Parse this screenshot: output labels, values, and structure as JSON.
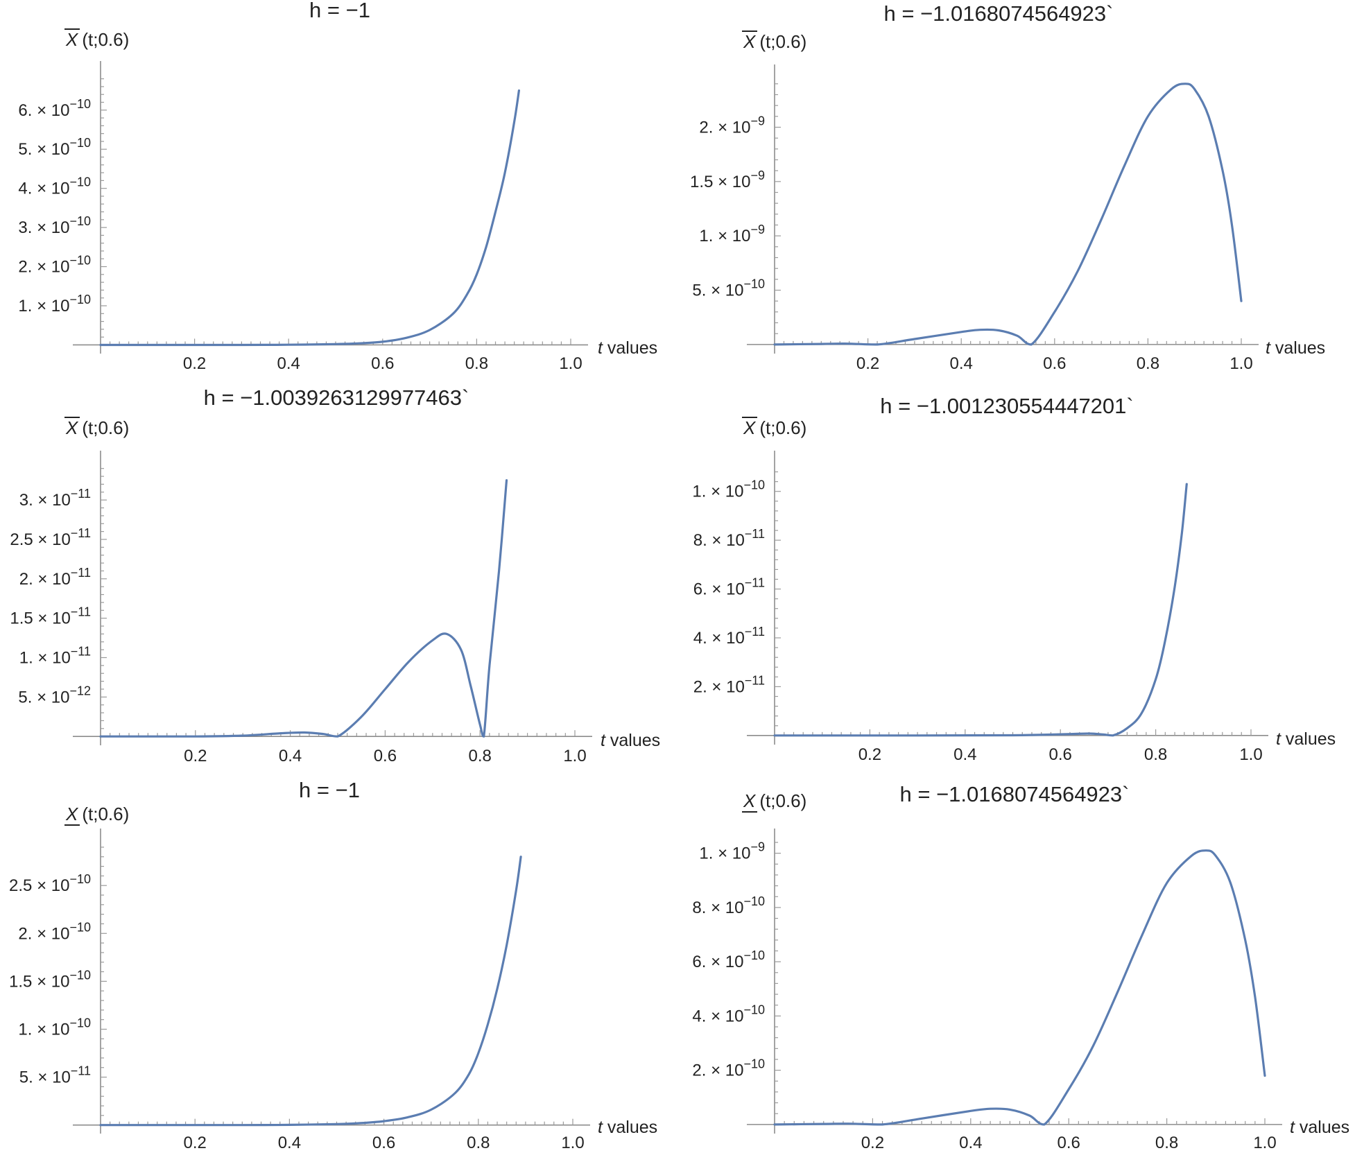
{
  "figure": {
    "curve_color": "#5b7db1",
    "axis_color": "#8c8c8c",
    "background": "#ffffff"
  },
  "chart_data": [
    {
      "type": "line",
      "title": "h = −1",
      "ylabel": "X",
      "ylabel_bar": "over",
      "ylabel_suffix": "(t;0.6)",
      "xlabel_italic": "t",
      "xlabel_rest": " values",
      "xlim": [
        0,
        1.0
      ],
      "ylim": [
        -4.5e-12,
        6.9e-10
      ],
      "xticks": [
        0.2,
        0.4,
        0.6,
        0.8,
        1.0
      ],
      "xtick_labels": [
        "0.2",
        "0.4",
        "0.6",
        "0.8",
        "1.0"
      ],
      "yticks": [
        {
          "value": 1e-10,
          "mantissa": "1.",
          "exponent": "−10"
        },
        {
          "value": 2e-10,
          "mantissa": "2.",
          "exponent": "−10"
        },
        {
          "value": 3e-10,
          "mantissa": "3.",
          "exponent": "−10"
        },
        {
          "value": 4e-10,
          "mantissa": "4.",
          "exponent": "−10"
        },
        {
          "value": 5e-10,
          "mantissa": "5.",
          "exponent": "−10"
        },
        {
          "value": 6e-10,
          "mantissa": "6.",
          "exponent": "−10"
        }
      ],
      "x": [
        0.0,
        0.3,
        0.4,
        0.5,
        0.55,
        0.6,
        0.65,
        0.7,
        0.75,
        0.78,
        0.8,
        0.82,
        0.84,
        0.86,
        0.88,
        0.89
      ],
      "y": [
        0,
        0,
        5e-13,
        2e-12,
        4e-12,
        8e-12,
        1.8e-11,
        3.8e-11,
        8e-11,
        1.3e-10,
        1.8e-10,
        2.5e-10,
        3.4e-10,
        4.4e-10,
        5.7e-10,
        6.5e-10
      ]
    },
    {
      "type": "line",
      "title": "h = −1.0168074564923`",
      "ylabel": "X",
      "ylabel_bar": "over",
      "ylabel_suffix": "(t;0.6)",
      "xlabel_italic": "t",
      "xlabel_rest": " values",
      "xlim": [
        0,
        1.0
      ],
      "ylim": [
        -2e-11,
        2.45e-09
      ],
      "xticks": [
        0.2,
        0.4,
        0.6,
        0.8,
        1.0
      ],
      "xtick_labels": [
        "0.2",
        "0.4",
        "0.6",
        "0.8",
        "1.0"
      ],
      "yticks": [
        {
          "value": 5e-10,
          "mantissa": "5.",
          "exponent": "−10"
        },
        {
          "value": 1e-09,
          "mantissa": "1.",
          "exponent": "−9"
        },
        {
          "value": 1.5e-09,
          "mantissa": "1.5",
          "exponent": "−9"
        },
        {
          "value": 2e-09,
          "mantissa": "2.",
          "exponent": "−9"
        }
      ],
      "x": [
        0.0,
        0.1,
        0.15,
        0.22,
        0.3,
        0.4,
        0.44,
        0.48,
        0.52,
        0.55,
        0.6,
        0.65,
        0.7,
        0.75,
        0.8,
        0.85,
        0.88,
        0.9,
        0.93,
        0.96,
        0.98,
        1.0
      ],
      "y": [
        0,
        5e-12,
        8e-12,
        0,
        5e-11,
        1.15e-10,
        1.35e-10,
        1.3e-10,
        8e-11,
        0,
        3e-10,
        6.8e-10,
        1.15e-09,
        1.65e-09,
        2.1e-09,
        2.35e-09,
        2.4e-09,
        2.35e-09,
        2.1e-09,
        1.6e-09,
        1.1e-09,
        4e-10
      ]
    },
    {
      "type": "line",
      "title": "h = −1.0039263129977463`",
      "ylabel": "X",
      "ylabel_bar": "over",
      "ylabel_suffix": "(t;0.6)",
      "xlabel_italic": "t",
      "xlabel_rest": " values",
      "xlim": [
        0,
        1.0
      ],
      "ylim": [
        -2.5e-13,
        3.45e-11
      ],
      "xticks": [
        0.2,
        0.4,
        0.6,
        0.8,
        1.0
      ],
      "xtick_labels": [
        "0.2",
        "0.4",
        "0.6",
        "0.8",
        "1.0"
      ],
      "yticks": [
        {
          "value": 5e-12,
          "mantissa": "5.",
          "exponent": "−12"
        },
        {
          "value": 1e-11,
          "mantissa": "1.",
          "exponent": "−11"
        },
        {
          "value": 1.5e-11,
          "mantissa": "1.5",
          "exponent": "−11"
        },
        {
          "value": 2e-11,
          "mantissa": "2.",
          "exponent": "−11"
        },
        {
          "value": 2.5e-11,
          "mantissa": "2.5",
          "exponent": "−11"
        },
        {
          "value": 3e-11,
          "mantissa": "3.",
          "exponent": "−11"
        }
      ],
      "x": [
        0.0,
        0.2,
        0.3,
        0.38,
        0.43,
        0.47,
        0.5,
        0.55,
        0.6,
        0.65,
        0.7,
        0.73,
        0.76,
        0.78,
        0.8,
        0.808,
        0.82,
        0.84,
        0.856
      ],
      "y": [
        0,
        0,
        1e-13,
        4e-13,
        5e-13,
        3e-13,
        0,
        2.5e-12,
        6e-12,
        9.5e-12,
        1.22e-11,
        1.3e-11,
        1.1e-11,
        6.5e-12,
        1.5e-12,
        0,
        9e-12,
        2.1e-11,
        3.25e-11
      ]
    },
    {
      "type": "line",
      "title": "h = −1.001230554447201`",
      "ylabel": "X",
      "ylabel_bar": "over",
      "ylabel_suffix": "(t;0.6)",
      "xlabel_italic": "t",
      "xlabel_rest": " values",
      "xlim": [
        0,
        1.0
      ],
      "ylim": [
        -9e-13,
        1.11e-10
      ],
      "xticks": [
        0.2,
        0.4,
        0.6,
        0.8,
        1.0
      ],
      "xtick_labels": [
        "0.2",
        "0.4",
        "0.6",
        "0.8",
        "1.0"
      ],
      "yticks": [
        {
          "value": 2e-11,
          "mantissa": "2.",
          "exponent": "−11"
        },
        {
          "value": 4e-11,
          "mantissa": "4.",
          "exponent": "−11"
        },
        {
          "value": 6e-11,
          "mantissa": "6.",
          "exponent": "−11"
        },
        {
          "value": 8e-11,
          "mantissa": "8.",
          "exponent": "−11"
        },
        {
          "value": 1e-10,
          "mantissa": "1.",
          "exponent": "−10"
        }
      ],
      "x": [
        0.0,
        0.3,
        0.5,
        0.6,
        0.66,
        0.69,
        0.71,
        0.74,
        0.77,
        0.8,
        0.82,
        0.84,
        0.855,
        0.865
      ],
      "y": [
        0,
        0,
        1e-13,
        5e-13,
        8e-13,
        4e-13,
        0,
        3e-12,
        9e-12,
        2.3e-11,
        3.9e-11,
        6.1e-11,
        8.3e-11,
        1.03e-10
      ]
    },
    {
      "type": "line",
      "title": "h = −1",
      "ylabel": "X",
      "ylabel_bar": "under",
      "ylabel_suffix": "(t;0.6)",
      "xlabel_italic": "t",
      "xlabel_rest": " values",
      "xlim": [
        0,
        1.0
      ],
      "ylim": [
        -1.7e-12,
        2.95e-10
      ],
      "xticks": [
        0.2,
        0.4,
        0.6,
        0.8,
        1.0
      ],
      "xtick_labels": [
        "0.2",
        "0.4",
        "0.6",
        "0.8",
        "1.0"
      ],
      "yticks": [
        {
          "value": 5e-11,
          "mantissa": "5.",
          "exponent": "−11"
        },
        {
          "value": 1e-10,
          "mantissa": "1.",
          "exponent": "−10"
        },
        {
          "value": 1.5e-10,
          "mantissa": "1.5",
          "exponent": "−10"
        },
        {
          "value": 2e-10,
          "mantissa": "2.",
          "exponent": "−10"
        },
        {
          "value": 2.5e-10,
          "mantissa": "2.5",
          "exponent": "−10"
        }
      ],
      "x": [
        0.0,
        0.3,
        0.4,
        0.5,
        0.55,
        0.6,
        0.65,
        0.7,
        0.75,
        0.78,
        0.8,
        0.82,
        0.84,
        0.86,
        0.88,
        0.89
      ],
      "y": [
        0,
        0,
        2e-13,
        1e-12,
        2e-12,
        4e-12,
        8e-12,
        1.6e-11,
        3.3e-11,
        5.3e-11,
        7.5e-11,
        1.05e-10,
        1.42e-10,
        1.88e-10,
        2.45e-10,
        2.8e-10
      ]
    },
    {
      "type": "line",
      "title": "h = −1.0168074564923`",
      "ylabel": "X",
      "ylabel_bar": "under",
      "ylabel_suffix": "(t;0.6)",
      "xlabel_italic": "t",
      "xlabel_rest": " values",
      "xlim": [
        0,
        1.0
      ],
      "ylim": [
        -8e-12,
        1.04e-09
      ],
      "xticks": [
        0.2,
        0.4,
        0.6,
        0.8,
        1.0
      ],
      "xtick_labels": [
        "0.2",
        "0.4",
        "0.6",
        "0.8",
        "1.0"
      ],
      "yticks": [
        {
          "value": 2e-10,
          "mantissa": "2.",
          "exponent": "−10"
        },
        {
          "value": 4e-10,
          "mantissa": "4.",
          "exponent": "−10"
        },
        {
          "value": 6e-10,
          "mantissa": "6.",
          "exponent": "−10"
        },
        {
          "value": 8e-10,
          "mantissa": "8.",
          "exponent": "−10"
        },
        {
          "value": 1e-09,
          "mantissa": "1.",
          "exponent": "−9"
        }
      ],
      "x": [
        0.0,
        0.1,
        0.15,
        0.22,
        0.3,
        0.4,
        0.44,
        0.48,
        0.52,
        0.55,
        0.6,
        0.65,
        0.7,
        0.75,
        0.8,
        0.85,
        0.88,
        0.9,
        0.93,
        0.96,
        0.98,
        1.0
      ],
      "y": [
        0,
        2e-12,
        3e-12,
        0,
        2.2e-11,
        5e-11,
        5.8e-11,
        5.5e-11,
        3.3e-11,
        0,
        1.3e-10,
        2.9e-10,
        4.9e-10,
        7e-10,
        8.9e-10,
        9.9e-10,
        1.01e-09,
        9.9e-10,
        8.9e-10,
        6.8e-10,
        4.7e-10,
        1.8e-10
      ]
    }
  ]
}
